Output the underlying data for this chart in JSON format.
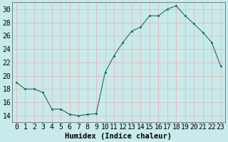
{
  "x": [
    0,
    1,
    2,
    3,
    4,
    5,
    6,
    7,
    8,
    9,
    10,
    11,
    12,
    13,
    14,
    15,
    16,
    17,
    18,
    19,
    20,
    21,
    22,
    23
  ],
  "y": [
    19,
    18,
    18,
    17.5,
    15,
    15,
    14.2,
    14,
    14.2,
    14.3,
    20.5,
    23,
    25,
    26.7,
    27.3,
    29,
    29,
    30,
    30.5,
    29,
    27.8,
    26.5,
    25,
    21.5
  ],
  "line_color": "#1a7060",
  "marker_color": "#1a7060",
  "bg_color": "#c8eaea",
  "grid_color": "#e8b8b8",
  "xlabel": "Humidex (Indice chaleur)",
  "xlabel_fontsize": 7.5,
  "tick_fontsize": 7,
  "ylim": [
    13,
    31
  ],
  "xlim": [
    -0.5,
    23.5
  ],
  "yticks": [
    14,
    16,
    18,
    20,
    22,
    24,
    26,
    28,
    30
  ],
  "xticks": [
    0,
    1,
    2,
    3,
    4,
    5,
    6,
    7,
    8,
    9,
    10,
    11,
    12,
    13,
    14,
    15,
    16,
    17,
    18,
    19,
    20,
    21,
    22,
    23
  ]
}
